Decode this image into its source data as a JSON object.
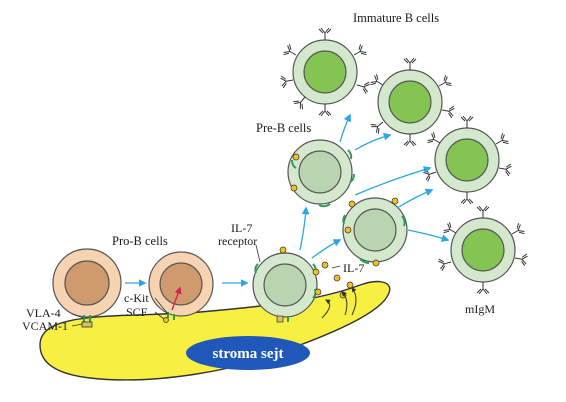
{
  "labels": {
    "immature_b_cells": "Immature B cells",
    "pre_b_cells": "Pre-B cells",
    "pro_b_cells": "Pro-B cells",
    "il7_receptor_line1": "IL-7",
    "il7_receptor_line2": "receptor",
    "il7": "IL-7",
    "ckit": "c-Kit",
    "scf": "SCF",
    "vla4": "VLA-4",
    "vcam1": "VCAM-1",
    "migm": "mIgM",
    "stroma": "stroma sejt"
  },
  "colors": {
    "stroma_fill": "#f7f043",
    "stroma_label_bg": "#1f58b8",
    "pro_b_membrane": "#f6d4b2",
    "pro_b_nucleus": "#cf9a6e",
    "pre_b_membrane": "#d3e8cc",
    "pre_b_nucleus": "#b8d4b0",
    "immature_nucleus": "#84c452",
    "arrow": "#2aa7df",
    "receptor": "#2e9e52",
    "il7_dot": "#f2c01f",
    "ckit_arrow": "#d8214f"
  }
}
